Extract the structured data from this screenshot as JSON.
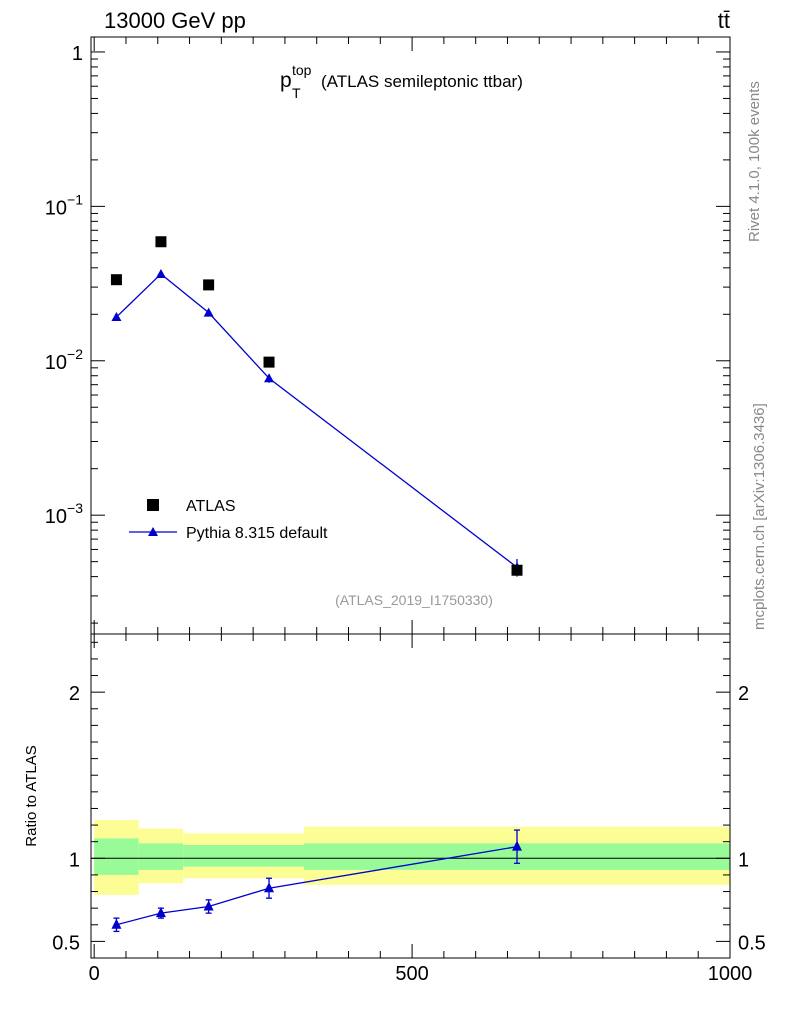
{
  "header": {
    "collision": "13000 GeV pp",
    "process": "tt̄"
  },
  "side": {
    "rivet": "Rivet 4.1.0,  100k events",
    "source": "mcplots.cern.ch [arXiv:1306.3436]"
  },
  "chart_data": [
    {
      "type": "scatter",
      "panel": "main",
      "title_main": "p",
      "title_sup": "top",
      "title_sub": "T",
      "title_rest": "(ATLAS semileptonic ttbar)",
      "analysis": "(ATLAS_2019_I1750330)",
      "yscale": "log",
      "xlim": [
        -5,
        1000
      ],
      "ylim": [
        0.00017,
        1.25
      ],
      "ytick_labels": [
        {
          "value": 1,
          "base": "1",
          "exp": ""
        },
        {
          "value": 0.1,
          "base": "10",
          "exp": "−1"
        },
        {
          "value": 0.01,
          "base": "10",
          "exp": "−2"
        },
        {
          "value": 0.001,
          "base": "10",
          "exp": "−3"
        }
      ],
      "legend_position": "bottom-left",
      "series": [
        {
          "name": "ATLAS",
          "marker": "square",
          "color": "#000000",
          "x": [
            35,
            105,
            180,
            275,
            665
          ],
          "y": [
            0.0335,
            0.059,
            0.031,
            0.0098,
            0.00044
          ]
        },
        {
          "name": "Pythia 8.315 default",
          "marker": "triangle",
          "color": "#0000cc",
          "line": true,
          "x": [
            35,
            105,
            180,
            275,
            665
          ],
          "y": [
            0.0192,
            0.0365,
            0.0205,
            0.0077,
            0.00046
          ],
          "yerr": [
            0.0006,
            0.0008,
            0.0006,
            0.0005,
            6e-05
          ]
        }
      ]
    },
    {
      "type": "scatter",
      "panel": "ratio",
      "ylabel": "Ratio to ATLAS",
      "xlim": [
        -5,
        1000
      ],
      "ylim": [
        0.4,
        2.35
      ],
      "xticks": [
        0,
        500,
        1000
      ],
      "ytick_labels": [
        {
          "value": 0.5,
          "label": "0.5"
        },
        {
          "value": 1,
          "label": "1"
        },
        {
          "value": 2,
          "label": "2"
        }
      ],
      "bands": [
        {
          "x0": 0,
          "x1": 70,
          "inner": [
            0.9,
            1.12
          ],
          "outer": [
            0.78,
            1.23
          ]
        },
        {
          "x0": 70,
          "x1": 140,
          "inner": [
            0.93,
            1.09
          ],
          "outer": [
            0.85,
            1.18
          ]
        },
        {
          "x0": 140,
          "x1": 330,
          "inner": [
            0.95,
            1.08
          ],
          "outer": [
            0.88,
            1.15
          ]
        },
        {
          "x0": 330,
          "x1": 1000,
          "inner": [
            0.93,
            1.09
          ],
          "outer": [
            0.84,
            1.19
          ]
        }
      ],
      "series": [
        {
          "name": "Pythia 8.315 default",
          "color": "#0000cc",
          "x": [
            35,
            105,
            180,
            275,
            665
          ],
          "y": [
            0.6,
            0.67,
            0.71,
            0.82,
            1.07
          ],
          "yerr": [
            0.04,
            0.03,
            0.04,
            0.06,
            0.1
          ]
        }
      ]
    }
  ]
}
